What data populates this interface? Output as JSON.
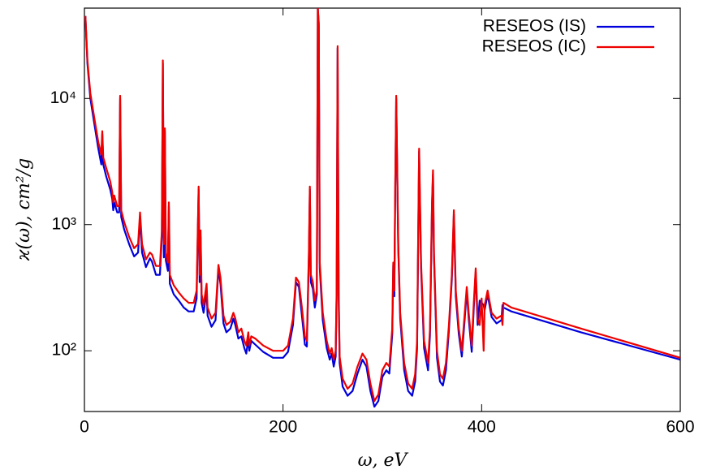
{
  "chart_data": {
    "type": "line",
    "x_label": "ω, eV",
    "y_label": "ϰ(ω), cm²/g",
    "log_y": true,
    "legend": "upper right",
    "xlim": [
      0,
      600
    ],
    "xticks": [
      0,
      200,
      400,
      600
    ],
    "ylim": [
      33,
      52000
    ],
    "yticks": [
      {
        "value": 100,
        "label": "10²"
      },
      {
        "value": 1000,
        "label": "10³"
      },
      {
        "value": 10000,
        "label": "10⁴"
      }
    ],
    "x": [
      1,
      3,
      6,
      10,
      14,
      17,
      18,
      19,
      22,
      26,
      28,
      29,
      30,
      33,
      35,
      36,
      37,
      40,
      45,
      50,
      54,
      56,
      58,
      62,
      66,
      68,
      72,
      76,
      78,
      79,
      80,
      81,
      82,
      84,
      85,
      86,
      90,
      95,
      100,
      105,
      110,
      113,
      115,
      116,
      117,
      118,
      120,
      123,
      124,
      128,
      132,
      135,
      137,
      140,
      143,
      147,
      150,
      152,
      155,
      158,
      161,
      163,
      165,
      166,
      168,
      172,
      180,
      190,
      200,
      205,
      210,
      213,
      216,
      219,
      222,
      224,
      226,
      227,
      228,
      230,
      232,
      234,
      235,
      236,
      237,
      240,
      244,
      247,
      249,
      251,
      253,
      254,
      255,
      256,
      257,
      260,
      265,
      270,
      275,
      280,
      284,
      288,
      292,
      296,
      300,
      304,
      307,
      310,
      311,
      312,
      313,
      314,
      316,
      318,
      322,
      326,
      330,
      333,
      335,
      337,
      339,
      342,
      346,
      348,
      350,
      351,
      352,
      355,
      358,
      361,
      364,
      367,
      370,
      372,
      374,
      377,
      380,
      383,
      385,
      387,
      390,
      392,
      394,
      396,
      398,
      400,
      402,
      403,
      406,
      410,
      415,
      420,
      421,
      422,
      430,
      500,
      600
    ],
    "series": [
      {
        "name": "RESEOS (IS)",
        "color": "#0000dd",
        "values": [
          45000,
          19000,
          10000,
          6300,
          4000,
          3000,
          5200,
          3000,
          2400,
          1900,
          1600,
          1300,
          1500,
          1250,
          1250,
          10000,
          1150,
          920,
          700,
          560,
          600,
          1150,
          600,
          460,
          540,
          510,
          400,
          400,
          800,
          19000,
          550,
          5500,
          520,
          430,
          1400,
          340,
          280,
          250,
          220,
          205,
          205,
          260,
          1900,
          350,
          800,
          240,
          200,
          300,
          190,
          155,
          175,
          450,
          340,
          165,
          140,
          150,
          180,
          160,
          125,
          130,
          105,
          95,
          125,
          100,
          120,
          112,
          98,
          88,
          88,
          98,
          160,
          350,
          320,
          190,
          112,
          108,
          550,
          1900,
          350,
          310,
          220,
          280,
          52000,
          38000,
          450,
          175,
          105,
          85,
          95,
          75,
          90,
          280,
          25000,
          260,
          80,
          52,
          44,
          48,
          66,
          85,
          75,
          48,
          36,
          40,
          62,
          70,
          66,
          135,
          480,
          270,
          1900,
          10000,
          650,
          180,
          70,
          48,
          44,
          57,
          105,
          3800,
          450,
          105,
          70,
          135,
          1400,
          2500,
          550,
          88,
          57,
          53,
          70,
          145,
          370,
          1200,
          270,
          135,
          90,
          180,
          300,
          180,
          98,
          210,
          420,
          160,
          250,
          240,
          230,
          210,
          280,
          185,
          165,
          175,
          230,
          220,
          205,
          140,
          85
        ]
      },
      {
        "name": "RESEOS (IC)",
        "color": "#ee0000",
        "values": [
          45000,
          20000,
          11000,
          7000,
          4500,
          3600,
          5500,
          3400,
          2800,
          2200,
          1800,
          1500,
          1700,
          1400,
          1400,
          10500,
          1300,
          1050,
          800,
          650,
          700,
          1250,
          700,
          530,
          600,
          580,
          470,
          470,
          900,
          20000,
          700,
          5800,
          600,
          500,
          1500,
          400,
          330,
          290,
          260,
          240,
          240,
          300,
          2000,
          400,
          900,
          280,
          230,
          340,
          220,
          180,
          200,
          480,
          380,
          190,
          160,
          170,
          200,
          180,
          140,
          150,
          120,
          110,
          140,
          110,
          130,
          125,
          110,
          100,
          100,
          110,
          180,
          380,
          350,
          220,
          130,
          120,
          600,
          2000,
          400,
          350,
          250,
          300,
          52000,
          40000,
          500,
          200,
          120,
          95,
          105,
          85,
          100,
          300,
          26000,
          300,
          90,
          60,
          50,
          55,
          75,
          95,
          85,
          55,
          40,
          45,
          70,
          80,
          75,
          150,
          500,
          300,
          2000,
          10500,
          700,
          200,
          80,
          55,
          50,
          65,
          120,
          4000,
          500,
          120,
          80,
          150,
          1500,
          2700,
          600,
          100,
          65,
          60,
          80,
          160,
          400,
          1300,
          300,
          150,
          100,
          200,
          320,
          200,
          110,
          230,
          450,
          180,
          160,
          260,
          100,
          230,
          300,
          200,
          180,
          190,
          160,
          240,
          220,
          150,
          88
        ]
      }
    ]
  }
}
